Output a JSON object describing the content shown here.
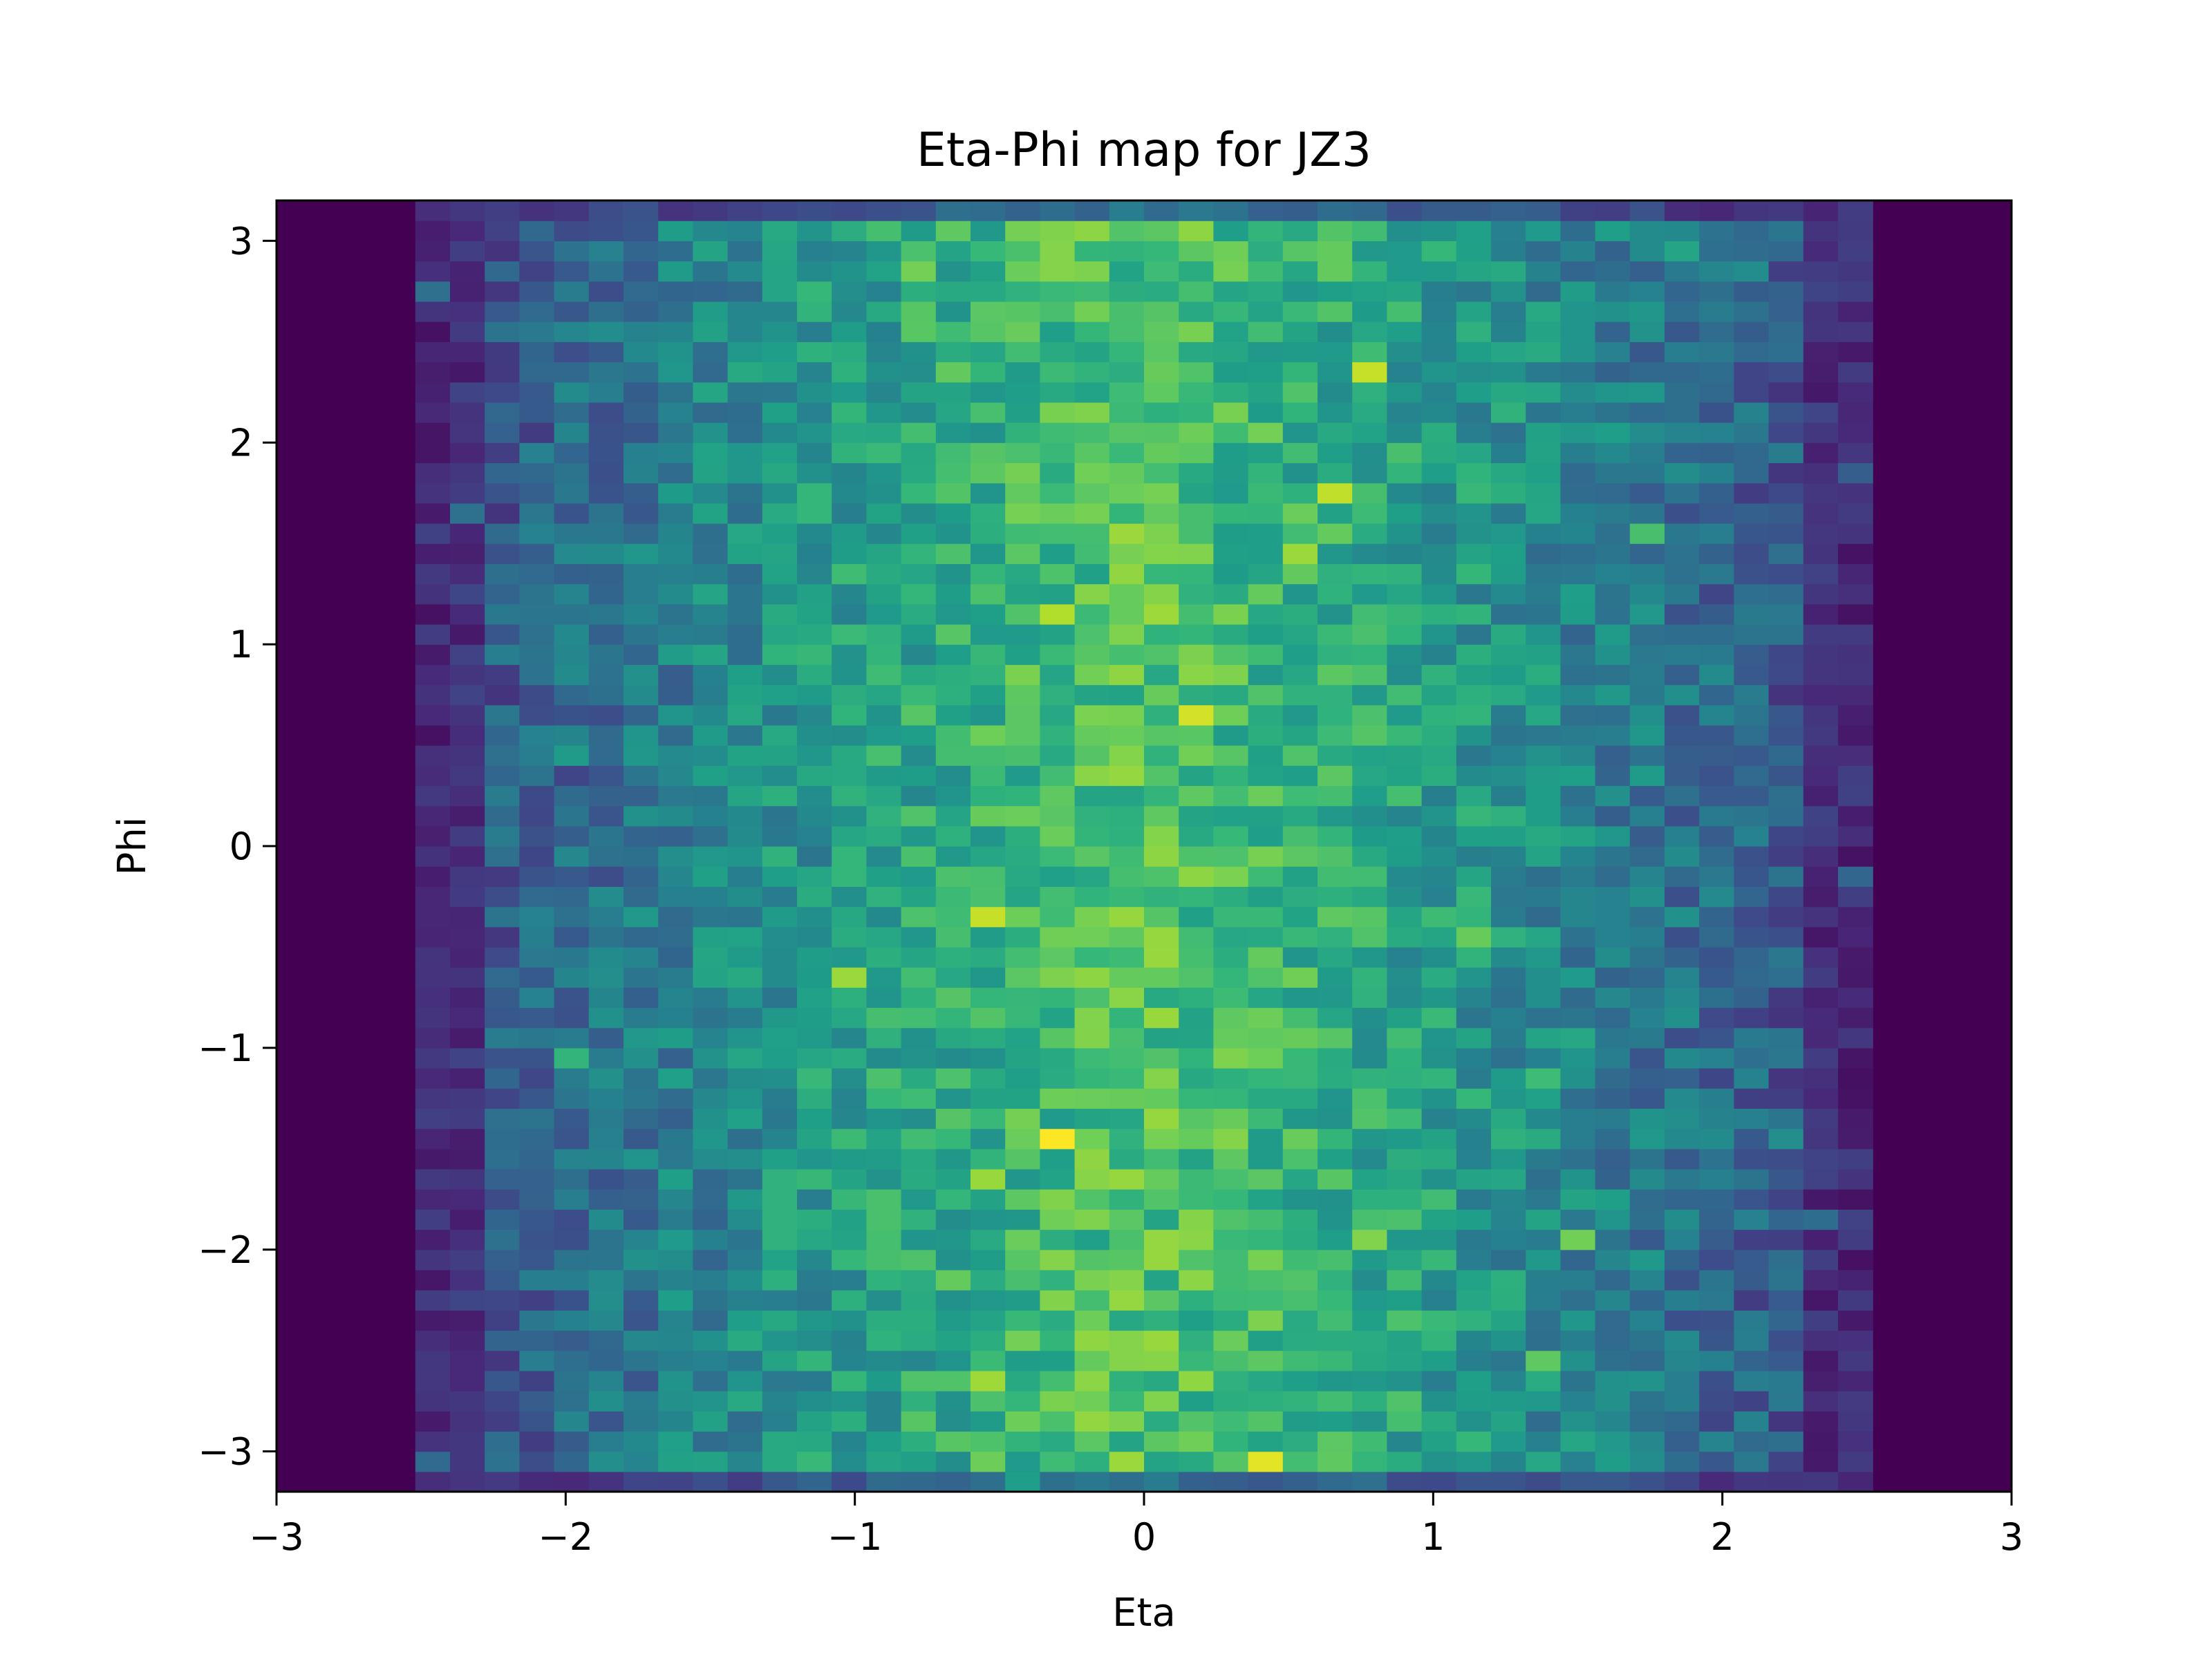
{
  "chart_data": {
    "type": "heatmap",
    "title": "Eta-Phi map for JZ3",
    "xlabel": "Eta",
    "ylabel": "Phi",
    "xlim": [
      -3,
      3
    ],
    "ylim": [
      -3.2,
      3.2
    ],
    "xticks": [
      -3,
      -2,
      -1,
      0,
      1,
      2,
      3
    ],
    "yticks": [
      -3,
      -2,
      -1,
      0,
      1,
      2,
      3
    ],
    "xtick_labels": [
      "−3",
      "−2",
      "−1",
      "0",
      "1",
      "2",
      "3"
    ],
    "ytick_labels": [
      "−3",
      "−2",
      "−1",
      "0",
      "1",
      "2",
      "3"
    ],
    "colormap": "viridis",
    "grid": false,
    "legend": "none",
    "colorbar": false,
    "bins": {
      "eta_range": [
        -3,
        3
      ],
      "phi_range": [
        -3.2,
        3.2
      ],
      "n_eta": 50,
      "n_phi": 64,
      "populated_eta_range": [
        -2.52,
        2.52
      ]
    },
    "values_note": "Occupancy is near zero for |Eta| > 2.52; populated region is roughly uniform in Phi, highest near Eta≈0 and decreasing toward |Eta|≈2.5.",
    "colors": {
      "viridis": [
        "#440154",
        "#482878",
        "#3e4989",
        "#31688e",
        "#26828e",
        "#1f9e89",
        "#35b779",
        "#6ece58",
        "#b5de2b",
        "#fde725"
      ]
    }
  }
}
